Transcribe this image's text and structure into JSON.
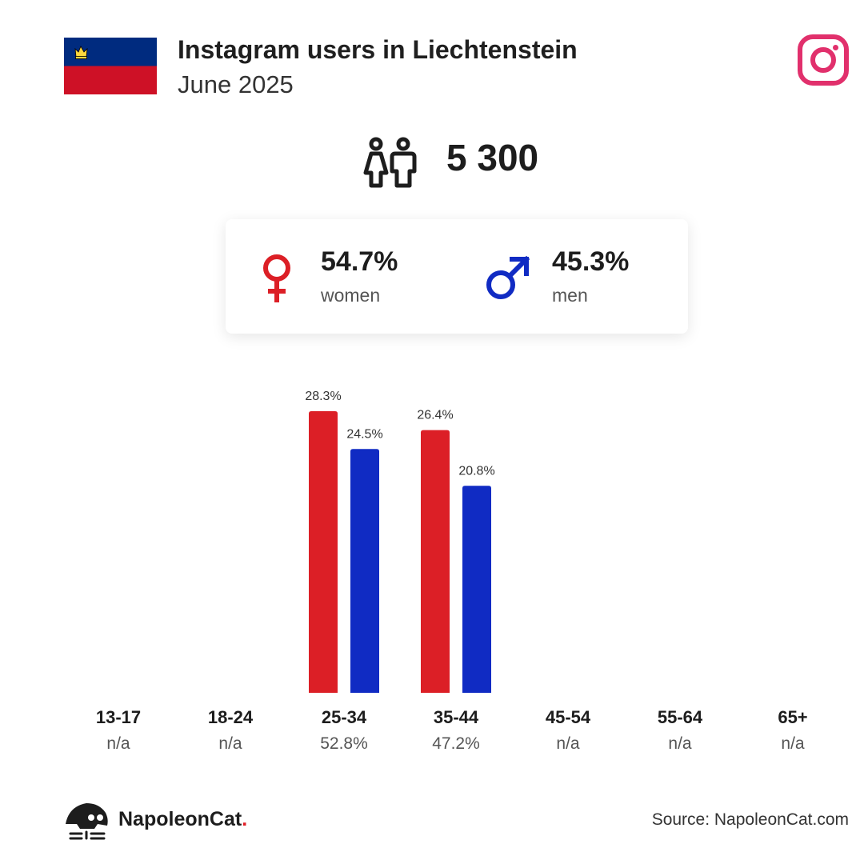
{
  "header": {
    "title": "Instagram users in Liechtenstein",
    "subtitle": "June 2025",
    "flag_colors": {
      "top": "#002b7f",
      "bottom": "#ce1126",
      "crown": "#ffd83d"
    },
    "brand_icon": "instagram-icon",
    "brand_color": "#e1306c"
  },
  "total": {
    "icon": "people-icon",
    "value": "5 300"
  },
  "gender": {
    "women": {
      "icon": "female-symbol-icon",
      "percent": "54.7%",
      "label": "women",
      "color": "#dc1f26"
    },
    "men": {
      "icon": "male-symbol-icon",
      "percent": "45.3%",
      "label": "men",
      "color": "#102bc3"
    }
  },
  "chart_data": {
    "type": "bar",
    "categories": [
      "13-17",
      "18-24",
      "25-34",
      "35-44",
      "45-54",
      "55-64",
      "65+"
    ],
    "category_totals": [
      "n/a",
      "n/a",
      "52.8%",
      "47.2%",
      "n/a",
      "n/a",
      "n/a"
    ],
    "series": [
      {
        "key": "women",
        "color": "#dc1f26",
        "values": [
          null,
          null,
          28.3,
          26.4,
          null,
          null,
          null
        ],
        "labels": [
          "",
          "",
          "28.3%",
          "26.4%",
          "",
          "",
          ""
        ]
      },
      {
        "key": "men",
        "color": "#102bc3",
        "values": [
          null,
          null,
          24.5,
          20.8,
          null,
          null,
          null
        ],
        "labels": [
          "",
          "",
          "24.5%",
          "20.8%",
          "",
          "",
          ""
        ]
      }
    ],
    "ylim": [
      0,
      29
    ],
    "grid": false,
    "legend": "none"
  },
  "footer": {
    "brand_name": "NapoleonCat",
    "brand_dot": ".",
    "logo_icon": "napoleoncat-logo-icon",
    "source": "Source: NapoleonCat.com"
  }
}
